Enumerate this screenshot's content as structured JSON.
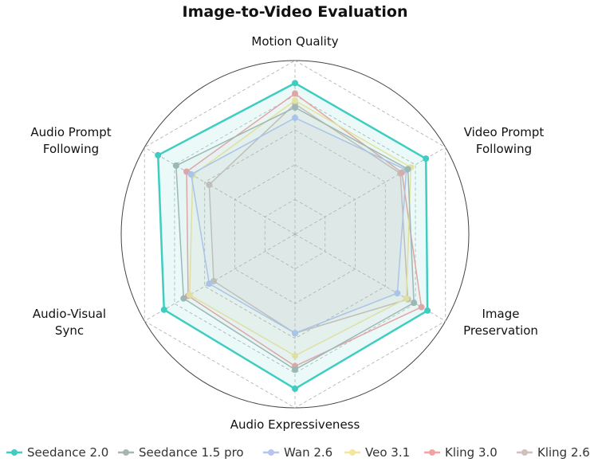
{
  "chart_data": {
    "type": "radar",
    "title": "Image-to-Video Evaluation",
    "axes": [
      [
        "Motion Quality"
      ],
      [
        "Video Prompt",
        "Following"
      ],
      [
        "Image",
        "Preservation"
      ],
      [
        "Audio Expressiveness"
      ],
      [
        "Audio-Visual",
        "Sync"
      ],
      [
        "Audio Prompt",
        "Following"
      ]
    ],
    "range": [
      0,
      5
    ],
    "grid_levels": [
      1,
      2,
      3,
      4,
      5
    ],
    "grid": true,
    "legend_position": "bottom",
    "series": [
      {
        "name": "Seedance 2.0",
        "color": "#3ecdc0",
        "values": [
          4.35,
          4.35,
          4.4,
          4.45,
          4.35,
          4.55
        ]
      },
      {
        "name": "Seedance 1.5 pro",
        "color": "#a9b5b3",
        "values": [
          3.65,
          3.75,
          3.95,
          3.9,
          3.7,
          3.95
        ]
      },
      {
        "name": "Wan 2.6",
        "color": "#b7c4f2",
        "values": [
          3.35,
          3.7,
          3.4,
          2.85,
          2.85,
          3.45
        ]
      },
      {
        "name": "Veo 3.1",
        "color": "#f6e59c",
        "values": [
          3.85,
          3.85,
          3.7,
          3.5,
          3.5,
          3.4
        ]
      },
      {
        "name": "Kling 3.0",
        "color": "#f3a2a2",
        "values": [
          4.05,
          3.55,
          4.2,
          3.8,
          3.55,
          3.6
        ]
      },
      {
        "name": "Kling 2.6",
        "color": "#cfc0bc",
        "values": [
          3.75,
          3.5,
          3.75,
          2.85,
          2.7,
          2.85
        ]
      }
    ]
  }
}
